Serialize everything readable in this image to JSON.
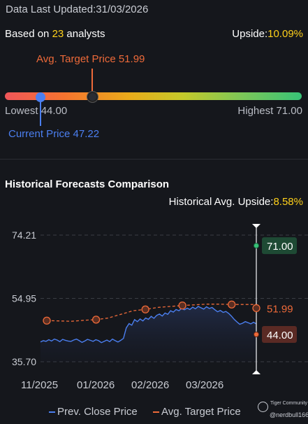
{
  "header": {
    "updated_label": "Data Last Updated:",
    "updated_date": "31/03/2026",
    "based_on_prefix": "Based on ",
    "analyst_count": "23",
    "based_on_suffix": " analysts",
    "upside_label": "Upside:",
    "upside_value": "10.09%"
  },
  "range": {
    "target_label": "Avg. Target Price 51.99",
    "lowest_label": "Lowest 44.00",
    "highest_label": "Highest 71.00",
    "current_label": "Current Price 47.22",
    "low": 44.0,
    "high": 71.0,
    "current": 47.22,
    "target": 51.99,
    "colors": {
      "target": "#ee6a39",
      "current": "#4b7ff0"
    }
  },
  "historical": {
    "title": "Historical Forecasts Comparison",
    "upside_label": "Historical Avg. Upside:",
    "upside_value": "8.58%"
  },
  "chart_data": {
    "type": "line",
    "x_ticks": [
      "11/2025",
      "01/2026",
      "02/2026",
      "03/2026"
    ],
    "y_ticks": [
      "74.21",
      "54.95",
      "35.70"
    ],
    "ylim": [
      35.7,
      74.21
    ],
    "series": [
      {
        "name": "Prev. Close Price",
        "color": "#4b7ff0",
        "values": [
          41.7,
          42.1,
          41.9,
          42.4,
          42.0,
          42.6,
          42.3,
          41.8,
          42.5,
          42.2,
          42.0,
          41.9,
          42.3,
          42.6,
          42.1,
          41.6,
          42.0,
          42.5,
          42.2,
          41.9,
          42.4,
          42.1,
          41.5,
          41.9,
          42.3,
          41.8,
          42.6,
          42.1,
          41.7,
          42.2,
          42.8,
          46.0,
          47.3,
          46.8,
          48.5,
          47.9,
          48.7,
          48.1,
          49.0,
          48.6,
          49.5,
          48.9,
          49.8,
          50.2,
          49.6,
          50.5,
          50.1,
          51.2,
          50.8,
          51.6,
          51.2,
          51.9,
          51.5,
          52.0,
          51.6,
          52.3,
          51.8,
          52.5,
          52.1,
          51.7,
          52.4,
          51.9,
          52.2,
          51.5,
          50.9,
          51.3,
          50.7,
          51.0,
          50.4,
          49.6,
          48.6,
          47.8,
          47.1,
          47.4,
          47.9,
          47.6,
          47.2,
          47.7,
          47.22
        ]
      },
      {
        "name": "Avg. Target Price",
        "color": "#ee6a39",
        "values": [
          48.2,
          48.1,
          48.0,
          48.3,
          48.5,
          49.0,
          50.1,
          51.2,
          51.6,
          52.2,
          52.5,
          52.8,
          53.0,
          53.2,
          53.2,
          53.1,
          53.1,
          53.1
        ]
      }
    ],
    "tooltip": {
      "high": "71.00",
      "target": "51.99",
      "low": "44.00"
    },
    "legend": [
      "Prev. Close Price",
      "Avg. Target Price"
    ],
    "grid": true
  },
  "brand": {
    "name": "Tiger Community",
    "handle": "@nerdbull1669"
  }
}
